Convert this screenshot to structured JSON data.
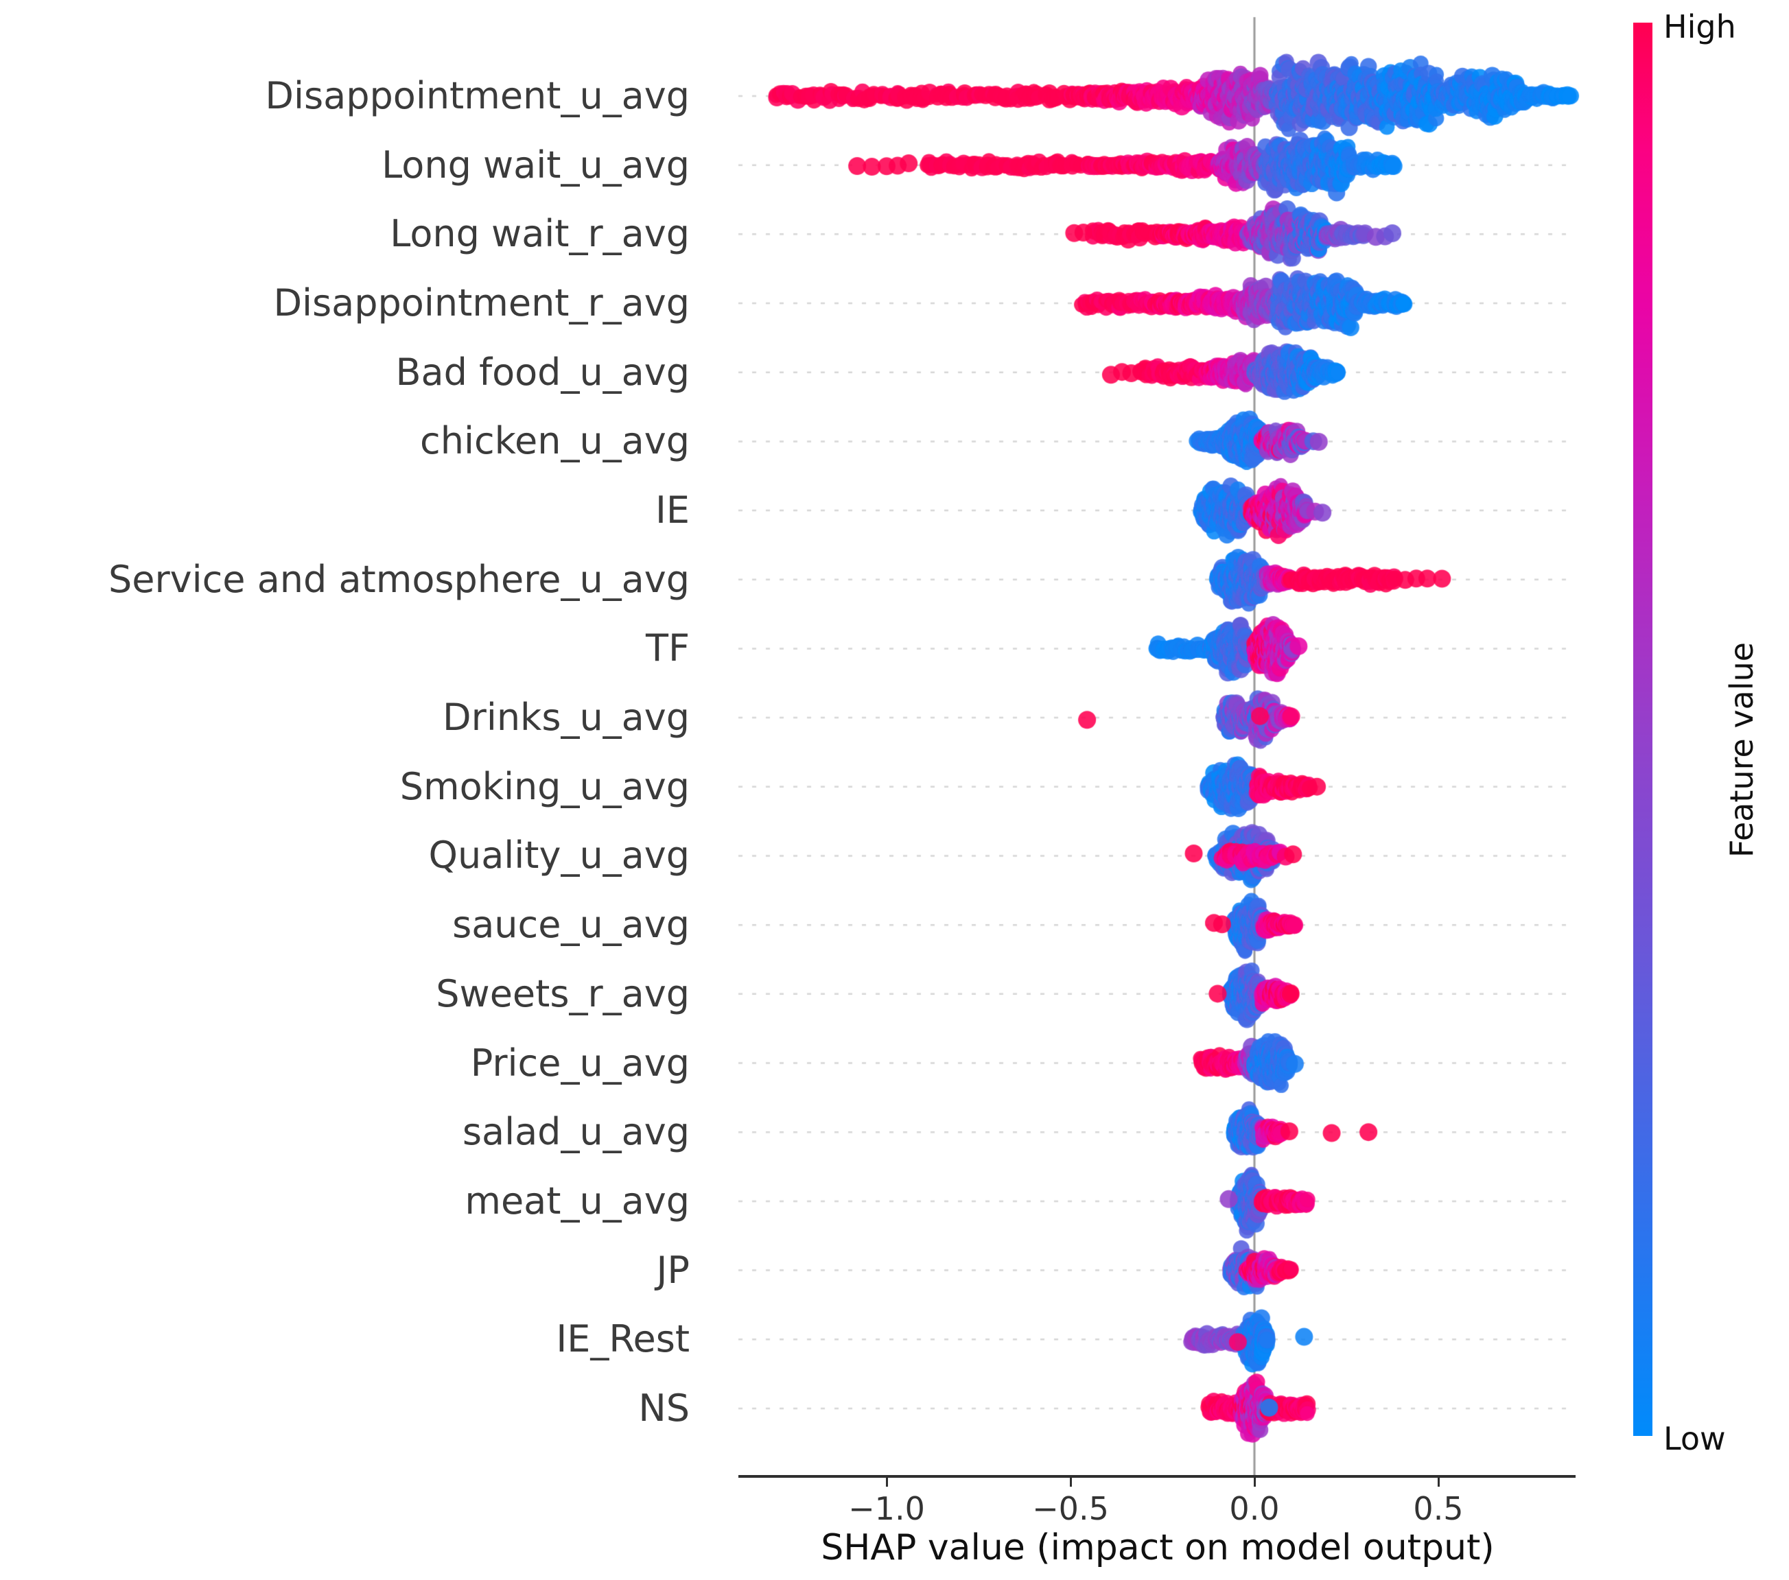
{
  "chart_data": {
    "type": "scatter",
    "subtype": "shap-beeswarm-summary",
    "xlabel": "SHAP value (impact on model output)",
    "x_ticks": [
      "−1.0",
      "−0.5",
      "0.0",
      "0.5"
    ],
    "x_tick_values": [
      -1.0,
      -0.5,
      0.0,
      0.5
    ],
    "xlim": [
      -1.4,
      0.87
    ],
    "zero_line": 0.0,
    "grid": "dotted-row-lines",
    "legend_position": "right-colorbar",
    "features": [
      {
        "label": "Disappointment_u_avg",
        "segments": [
          {
            "x0": -1.31,
            "x1": -0.5,
            "n": 130,
            "h": 9,
            "p": "bar",
            "v0": 1.0,
            "v1": 1.0,
            "vj": 0.03
          },
          {
            "x0": -0.5,
            "x1": -0.16,
            "n": 160,
            "h": 20,
            "p": "taperR",
            "v0": 1.0,
            "v1": 0.88,
            "vj": 0.05
          },
          {
            "x0": -0.16,
            "x1": 0.06,
            "n": 200,
            "h": 46,
            "p": "blob",
            "v0": 0.8,
            "v1": 0.45,
            "vj": 0.15
          },
          {
            "x0": 0.06,
            "x1": 0.5,
            "n": 380,
            "h": 55,
            "p": "bar",
            "v0": 0.25,
            "v1": 0.05,
            "vj": 0.12
          },
          {
            "x0": 0.5,
            "x1": 0.74,
            "n": 150,
            "h": 42,
            "p": "blob",
            "v0": 0.12,
            "v1": 0.02,
            "vj": 0.08
          },
          {
            "x0": 0.74,
            "x1": 0.86,
            "n": 30,
            "h": 10,
            "p": "taperL",
            "v0": 0.05,
            "v1": 0.0,
            "vj": 0.04
          }
        ],
        "dots": []
      },
      {
        "label": "Long wait_u_avg",
        "segments": [
          {
            "x0": -0.9,
            "x1": -0.45,
            "n": 70,
            "h": 8,
            "p": "bar",
            "v0": 1.0,
            "v1": 1.0,
            "vj": 0.02
          },
          {
            "x0": -0.45,
            "x1": -0.1,
            "n": 120,
            "h": 13,
            "p": "taperR",
            "v0": 1.0,
            "v1": 0.9,
            "vj": 0.05
          },
          {
            "x0": -0.1,
            "x1": 0.03,
            "n": 130,
            "h": 36,
            "p": "blob",
            "v0": 0.75,
            "v1": 0.45,
            "vj": 0.15
          },
          {
            "x0": 0.03,
            "x1": 0.26,
            "n": 260,
            "h": 44,
            "p": "bar",
            "v0": 0.25,
            "v1": 0.04,
            "vj": 0.1
          },
          {
            "x0": 0.26,
            "x1": 0.38,
            "n": 40,
            "h": 16,
            "p": "taperL",
            "v0": 0.1,
            "v1": 0.02,
            "vj": 0.05
          }
        ],
        "dots": [
          [
            -1.08,
            1
          ],
          [
            -1.04,
            1
          ],
          [
            -1.0,
            1
          ],
          [
            -0.97,
            1
          ],
          [
            -0.94,
            1
          ]
        ]
      },
      {
        "label": "Long wait_r_avg",
        "segments": [
          {
            "x0": -0.44,
            "x1": -0.26,
            "n": 45,
            "h": 9,
            "p": "bar",
            "v0": 1.0,
            "v1": 1.0,
            "vj": 0.03
          },
          {
            "x0": -0.26,
            "x1": -0.02,
            "n": 150,
            "h": 17,
            "p": "taperR",
            "v0": 1.0,
            "v1": 0.82,
            "vj": 0.08
          },
          {
            "x0": -0.02,
            "x1": 0.2,
            "n": 300,
            "h": 46,
            "p": "blob",
            "v0": 0.55,
            "v1": 0.18,
            "vj": 0.22
          },
          {
            "x0": 0.2,
            "x1": 0.3,
            "n": 30,
            "h": 11,
            "p": "taperL",
            "v0": 0.45,
            "v1": 0.3,
            "vj": 0.1
          }
        ],
        "dots": [
          [
            -0.49,
            1
          ],
          [
            -0.465,
            1
          ],
          [
            0.33,
            0.45
          ],
          [
            0.355,
            0.4
          ],
          [
            0.375,
            0.35
          ]
        ]
      },
      {
        "label": "Disappointment_r_avg",
        "segments": [
          {
            "x0": -0.47,
            "x1": -0.28,
            "n": 50,
            "h": 10,
            "p": "bar",
            "v0": 1.0,
            "v1": 0.95,
            "vj": 0.04
          },
          {
            "x0": -0.28,
            "x1": -0.04,
            "n": 160,
            "h": 17,
            "p": "taperR",
            "v0": 0.98,
            "v1": 0.8,
            "vj": 0.08
          },
          {
            "x0": -0.04,
            "x1": 0.06,
            "n": 130,
            "h": 34,
            "p": "blob",
            "v0": 0.7,
            "v1": 0.4,
            "vj": 0.15
          },
          {
            "x0": 0.06,
            "x1": 0.28,
            "n": 260,
            "h": 44,
            "p": "bar",
            "v0": 0.25,
            "v1": 0.05,
            "vj": 0.12
          },
          {
            "x0": 0.28,
            "x1": 0.41,
            "n": 50,
            "h": 14,
            "p": "taperL",
            "v0": 0.12,
            "v1": 0.02,
            "vj": 0.05
          }
        ],
        "dots": []
      },
      {
        "label": "Bad food_u_avg",
        "segments": [
          {
            "x0": -0.31,
            "x1": -0.13,
            "n": 60,
            "h": 11,
            "p": "bar",
            "v0": 1.0,
            "v1": 0.95,
            "vj": 0.04
          },
          {
            "x0": -0.13,
            "x1": 0.0,
            "n": 150,
            "h": 28,
            "p": "taperR",
            "v0": 0.92,
            "v1": 0.6,
            "vj": 0.12
          },
          {
            "x0": 0.0,
            "x1": 0.18,
            "n": 300,
            "h": 42,
            "p": "blob",
            "v0": 0.35,
            "v1": 0.06,
            "vj": 0.12
          },
          {
            "x0": 0.18,
            "x1": 0.23,
            "n": 25,
            "h": 12,
            "p": "taperL",
            "v0": 0.1,
            "v1": 0.02,
            "vj": 0.04
          }
        ],
        "dots": [
          [
            -0.39,
            1
          ],
          [
            -0.36,
            1
          ],
          [
            -0.335,
            1
          ]
        ]
      },
      {
        "label": "chicken_u_avg",
        "segments": [
          {
            "x0": -0.155,
            "x1": -0.08,
            "n": 45,
            "h": 14,
            "p": "taperR",
            "v0": 0.1,
            "v1": 0.12,
            "vj": 0.06
          },
          {
            "x0": -0.08,
            "x1": 0.02,
            "n": 220,
            "h": 44,
            "p": "blob",
            "v0": 0.12,
            "v1": 0.1,
            "vj": 0.1
          },
          {
            "x0": 0.02,
            "x1": 0.14,
            "n": 130,
            "h": 26,
            "p": "blob",
            "v0": 0.8,
            "v1": 0.45,
            "vj": 0.3
          }
        ],
        "dots": [
          [
            0.16,
            0.25
          ],
          [
            0.175,
            0.5
          ]
        ]
      },
      {
        "label": "IE",
        "segments": [
          {
            "x0": -0.145,
            "x1": -0.01,
            "n": 260,
            "h": 47,
            "p": "blob",
            "v0": 0.08,
            "v1": 0.18,
            "vj": 0.12
          },
          {
            "x0": -0.01,
            "x1": 0.145,
            "n": 240,
            "h": 42,
            "p": "blob",
            "v0": 0.9,
            "v1": 0.55,
            "vj": 0.25
          }
        ],
        "dots": [
          [
            0.165,
            0.6
          ],
          [
            0.185,
            0.45
          ]
        ]
      },
      {
        "label": "Service and atmosphere_u_avg",
        "segments": [
          {
            "x0": -0.1,
            "x1": 0.035,
            "n": 260,
            "h": 44,
            "p": "blob",
            "v0": 0.08,
            "v1": 0.25,
            "vj": 0.12
          },
          {
            "x0": 0.035,
            "x1": 0.1,
            "n": 60,
            "h": 15,
            "p": "taperL",
            "v0": 0.6,
            "v1": 0.9,
            "vj": 0.15
          },
          {
            "x0": 0.1,
            "x1": 0.385,
            "n": 110,
            "h": 9,
            "p": "bar",
            "v0": 1.0,
            "v1": 1.0,
            "vj": 0.03
          }
        ],
        "dots": [
          [
            0.41,
            1
          ],
          [
            0.44,
            1
          ],
          [
            0.47,
            1
          ],
          [
            0.51,
            1
          ]
        ]
      },
      {
        "label": "TF",
        "segments": [
          {
            "x0": -0.27,
            "x1": -0.12,
            "n": 40,
            "h": 8,
            "p": "bar",
            "v0": 0.04,
            "v1": 0.06,
            "vj": 0.03
          },
          {
            "x0": -0.12,
            "x1": 0.0,
            "n": 220,
            "h": 42,
            "p": "blob",
            "v0": 0.08,
            "v1": 0.3,
            "vj": 0.12
          },
          {
            "x0": 0.0,
            "x1": 0.105,
            "n": 230,
            "h": 47,
            "p": "blob",
            "v0": 0.95,
            "v1": 0.6,
            "vj": 0.2
          }
        ],
        "dots": [
          [
            0.12,
            0.8
          ]
        ]
      },
      {
        "label": "Drinks_u_avg",
        "segments": [
          {
            "x0": -0.085,
            "x1": -0.015,
            "n": 110,
            "h": 34,
            "p": "blob",
            "v0": 0.25,
            "v1": 0.45,
            "vj": 0.2
          },
          {
            "x0": -0.015,
            "x1": 0.06,
            "n": 150,
            "h": 42,
            "p": "blob",
            "v0": 0.3,
            "v1": 0.55,
            "vj": 0.25
          },
          {
            "x0": 0.06,
            "x1": 0.1,
            "n": 25,
            "h": 12,
            "p": "taperL",
            "v0": 0.5,
            "v1": 0.85,
            "vj": 0.2
          }
        ],
        "dots": [
          [
            -0.455,
            1
          ],
          [
            0.015,
            0.98
          ],
          [
            0.1,
            0.95
          ]
        ]
      },
      {
        "label": "Smoking_u_avg",
        "segments": [
          {
            "x0": -0.125,
            "x1": 0.005,
            "n": 220,
            "h": 42,
            "p": "blob",
            "v0": 0.07,
            "v1": 0.2,
            "vj": 0.1
          },
          {
            "x0": 0.005,
            "x1": 0.15,
            "n": 90,
            "h": 18,
            "p": "taperL",
            "v0": 0.95,
            "v1": 1.0,
            "vj": 0.06
          }
        ],
        "dots": [
          [
            0.17,
            1
          ]
        ]
      },
      {
        "label": "Quality_u_avg",
        "segments": [
          {
            "x0": -0.105,
            "x1": 0.055,
            "n": 260,
            "h": 42,
            "p": "blob",
            "v0": 0.12,
            "v1": 0.3,
            "vj": 0.18
          },
          {
            "x0": -0.09,
            "x1": 0.07,
            "n": 45,
            "h": 11,
            "p": "bar",
            "v0": 0.9,
            "v1": 0.85,
            "vj": 0.1
          }
        ],
        "dots": [
          [
            -0.165,
            1
          ],
          [
            0.085,
            0.95
          ],
          [
            0.105,
            1
          ]
        ]
      },
      {
        "label": "sauce_u_avg",
        "segments": [
          {
            "x0": -0.055,
            "x1": 0.025,
            "n": 230,
            "h": 47,
            "p": "blob",
            "v0": 0.08,
            "v1": 0.25,
            "vj": 0.12
          },
          {
            "x0": 0.025,
            "x1": 0.11,
            "n": 70,
            "h": 13,
            "p": "taperL",
            "v0": 0.85,
            "v1": 1.0,
            "vj": 0.1
          }
        ],
        "dots": [
          [
            -0.11,
            1
          ],
          [
            -0.088,
            1
          ]
        ]
      },
      {
        "label": "Sweets_r_avg",
        "segments": [
          {
            "x0": -0.065,
            "x1": 0.02,
            "n": 220,
            "h": 45,
            "p": "blob",
            "v0": 0.1,
            "v1": 0.3,
            "vj": 0.15
          },
          {
            "x0": 0.02,
            "x1": 0.1,
            "n": 100,
            "h": 21,
            "p": "taperL",
            "v0": 0.8,
            "v1": 1.0,
            "vj": 0.15
          }
        ],
        "dots": [
          [
            -0.1,
            1
          ]
        ]
      },
      {
        "label": "Price_u_avg",
        "segments": [
          {
            "x0": -0.145,
            "x1": -0.025,
            "n": 90,
            "h": 13,
            "p": "bar",
            "v0": 1.0,
            "v1": 0.9,
            "vj": 0.06
          },
          {
            "x0": -0.025,
            "x1": 0.015,
            "n": 70,
            "h": 27,
            "p": "blob",
            "v0": 0.6,
            "v1": 0.4,
            "vj": 0.2
          },
          {
            "x0": 0.0,
            "x1": 0.095,
            "n": 230,
            "h": 45,
            "p": "blob",
            "v0": 0.1,
            "v1": 0.15,
            "vj": 0.1
          }
        ],
        "dots": [
          [
            0.11,
            0.08
          ]
        ]
      },
      {
        "label": "salad_u_avg",
        "segments": [
          {
            "x0": -0.055,
            "x1": 0.02,
            "n": 210,
            "h": 43,
            "p": "blob",
            "v0": 0.08,
            "v1": 0.28,
            "vj": 0.15
          },
          {
            "x0": 0.02,
            "x1": 0.075,
            "n": 50,
            "h": 15,
            "p": "taperL",
            "v0": 0.75,
            "v1": 0.95,
            "vj": 0.15
          }
        ],
        "dots": [
          [
            0.095,
            1
          ],
          [
            0.21,
            1
          ],
          [
            0.31,
            1
          ]
        ]
      },
      {
        "label": "meat_u_avg",
        "segments": [
          {
            "x0": -0.045,
            "x1": 0.02,
            "n": 210,
            "h": 47,
            "p": "blob",
            "v0": 0.1,
            "v1": 0.3,
            "vj": 0.15
          },
          {
            "x0": 0.02,
            "x1": 0.145,
            "n": 80,
            "h": 10,
            "p": "bar",
            "v0": 1.0,
            "v1": 0.92,
            "vj": 0.06
          }
        ],
        "dots": [
          [
            -0.07,
            0.5
          ]
        ]
      },
      {
        "label": "JP",
        "segments": [
          {
            "x0": -0.065,
            "x1": 0.025,
            "n": 170,
            "h": 36,
            "p": "blob",
            "v0": 0.35,
            "v1": 0.2,
            "vj": 0.25
          },
          {
            "x0": -0.02,
            "x1": 0.065,
            "n": 90,
            "h": 22,
            "p": "blob",
            "v0": 0.9,
            "v1": 0.75,
            "vj": 0.2
          },
          {
            "x0": 0.065,
            "x1": 0.1,
            "n": 20,
            "h": 10,
            "p": "taperL",
            "v0": 0.95,
            "v1": 1.0,
            "vj": 0.05
          }
        ],
        "dots": []
      },
      {
        "label": "IE_Rest",
        "segments": [
          {
            "x0": -0.17,
            "x1": -0.03,
            "n": 80,
            "h": 13,
            "p": "bar",
            "v0": 0.5,
            "v1": 0.42,
            "vj": 0.12
          },
          {
            "x0": -0.03,
            "x1": 0.035,
            "n": 200,
            "h": 47,
            "p": "blob",
            "v0": 0.12,
            "v1": 0.08,
            "vj": 0.1
          }
        ],
        "dots": [
          [
            -0.045,
            0.95
          ],
          [
            0.135,
            0.05
          ]
        ]
      },
      {
        "label": "NS",
        "segments": [
          {
            "x0": -0.125,
            "x1": -0.04,
            "n": 60,
            "h": 13,
            "p": "bar",
            "v0": 1.0,
            "v1": 0.92,
            "vj": 0.06
          },
          {
            "x0": -0.04,
            "x1": 0.035,
            "n": 190,
            "h": 45,
            "p": "blob",
            "v0": 0.85,
            "v1": 0.6,
            "vj": 0.25
          },
          {
            "x0": 0.035,
            "x1": 0.145,
            "n": 75,
            "h": 10,
            "p": "bar",
            "v0": 1.0,
            "v1": 0.95,
            "vj": 0.05
          }
        ],
        "dots": [
          [
            0.04,
            0.08
          ]
        ]
      }
    ]
  },
  "colorbar": {
    "high_label": "High",
    "low_label": "Low",
    "axis_label": "Feature value",
    "high_color": "#ff0051",
    "low_color": "#008bfb",
    "stops": [
      [
        0.0,
        "#008bfb"
      ],
      [
        0.14,
        "#2b74ee"
      ],
      [
        0.33,
        "#6659da"
      ],
      [
        0.5,
        "#9440cb"
      ],
      [
        0.66,
        "#c31fbd"
      ],
      [
        0.8,
        "#ea04a6"
      ],
      [
        0.91,
        "#fb0183"
      ],
      [
        1.0,
        "#ff0051"
      ]
    ]
  },
  "style_colors": {
    "axis": "#2f2f2f",
    "tick_text": "#333333",
    "row_label_text": "#3b3b3b",
    "zero_line": "#9a9a9a",
    "row_dotted_line": "#d6d6d6",
    "background": "#ffffff"
  }
}
